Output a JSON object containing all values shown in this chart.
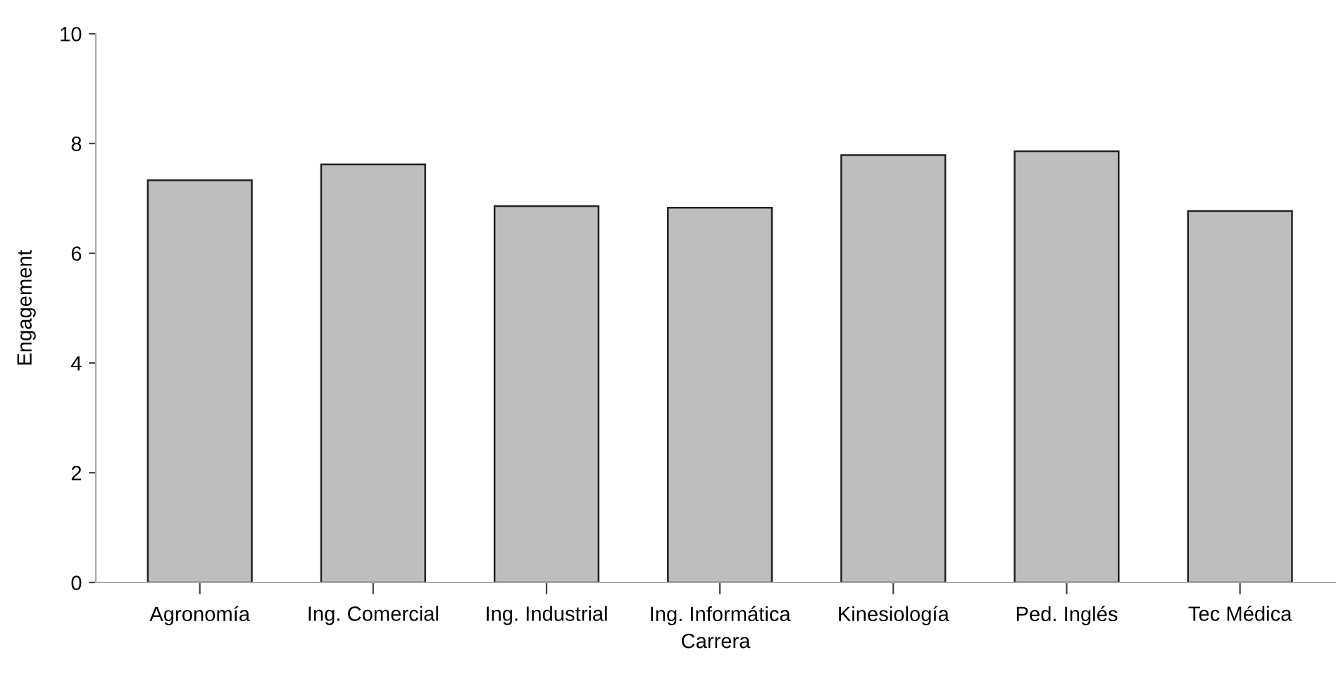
{
  "chart_data": {
    "type": "bar",
    "xlabel": "Carrera",
    "ylabel": "Engagement",
    "categories": [
      "Agronomía",
      "Ing. Comercial",
      "Ing. Industrial",
      "Ing. Informática",
      "Kinesiología",
      "Ped. Inglés",
      "Tec Médica"
    ],
    "values": [
      7.33,
      7.62,
      6.86,
      6.83,
      7.79,
      7.86,
      6.77
    ],
    "color": "#bebebe",
    "ylim": [
      0,
      10
    ],
    "yticks": [
      0,
      2,
      4,
      6,
      8,
      10
    ],
    "grid": false,
    "legend": false
  }
}
